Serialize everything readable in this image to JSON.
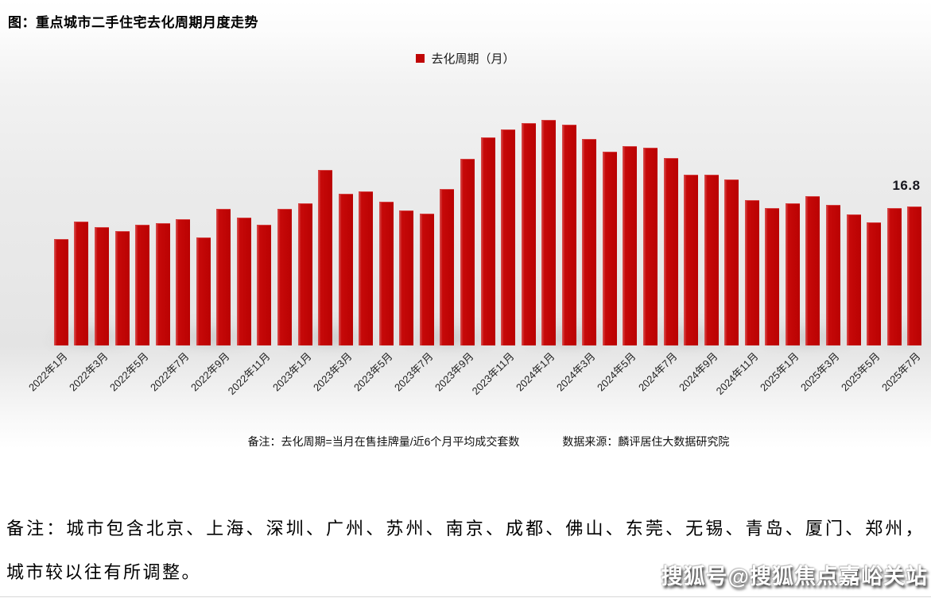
{
  "chart": {
    "title": "图：重点城市二手住宅去化周期月度走势",
    "legend_label": "去化周期（月）",
    "last_value_label": "16.8",
    "note": "备注：去化周期=当月在售挂牌量/近6个月平均成交套数",
    "source": "数据来源：麟评居住大数据研究院",
    "bar_color": "#C00606"
  },
  "chart_data": {
    "type": "bar",
    "title": "图：重点城市二手住宅去化周期月度走势",
    "series_name": "去化周期（月）",
    "categories": [
      "2022年1月",
      "2022年2月",
      "2022年3月",
      "2022年4月",
      "2022年5月",
      "2022年6月",
      "2022年7月",
      "2022年8月",
      "2022年9月",
      "2022年10月",
      "2022年11月",
      "2022年12月",
      "2023年1月",
      "2023年2月",
      "2023年3月",
      "2023年4月",
      "2023年5月",
      "2023年6月",
      "2023年7月",
      "2023年8月",
      "2023年9月",
      "2023年10月",
      "2023年11月",
      "2023年12月",
      "2024年1月",
      "2024年2月",
      "2024年3月",
      "2024年4月",
      "2024年5月",
      "2024年6月",
      "2024年7月",
      "2024年8月",
      "2024年9月",
      "2024年10月",
      "2024年11月",
      "2024年12月",
      "2025年1月",
      "2025年2月",
      "2025年3月",
      "2025年4月",
      "2025年5月",
      "2025年6月",
      "2025年7月"
    ],
    "values": [
      12.9,
      15.0,
      14.3,
      13.8,
      14.6,
      14.8,
      15.3,
      13.1,
      16.5,
      15.5,
      14.6,
      16.5,
      17.2,
      21.2,
      18.3,
      18.6,
      17.4,
      16.3,
      15.9,
      18.9,
      22.6,
      25.2,
      26.1,
      26.9,
      27.3,
      26.7,
      25.0,
      23.4,
      24.1,
      23.9,
      22.7,
      20.6,
      20.6,
      20.1,
      17.6,
      16.6,
      17.2,
      18.1,
      17.0,
      15.8,
      14.9,
      16.6,
      16.8
    ],
    "x_tick_labels": [
      "2022年1月",
      "2022年3月",
      "2022年5月",
      "2022年7月",
      "2022年9月",
      "2022年11月",
      "2023年1月",
      "2023年3月",
      "2023年5月",
      "2023年7月",
      "2023年9月",
      "2023年11月",
      "2024年1月",
      "2024年3月",
      "2024年5月",
      "2024年7月",
      "2024年9月",
      "2024年11月",
      "2025年1月",
      "2025年3月",
      "2025年5月",
      "2025年7月"
    ],
    "xlabel": "",
    "ylabel": "",
    "ylim": [
      0,
      28
    ],
    "grid": false,
    "legend_position": "top-center",
    "annotations": [
      {
        "category": "2025年7月",
        "text": "16.8"
      }
    ]
  },
  "footnote": {
    "line1": "备注：城市包含北京、上海、深圳、广州、苏州、南京、成都、佛山、东莞、无锡、青岛、厦门、郑州，",
    "line2": "城市较以往有所调整。"
  },
  "watermark": {
    "text": "搜狐号@搜狐焦点嘉峪关站"
  }
}
